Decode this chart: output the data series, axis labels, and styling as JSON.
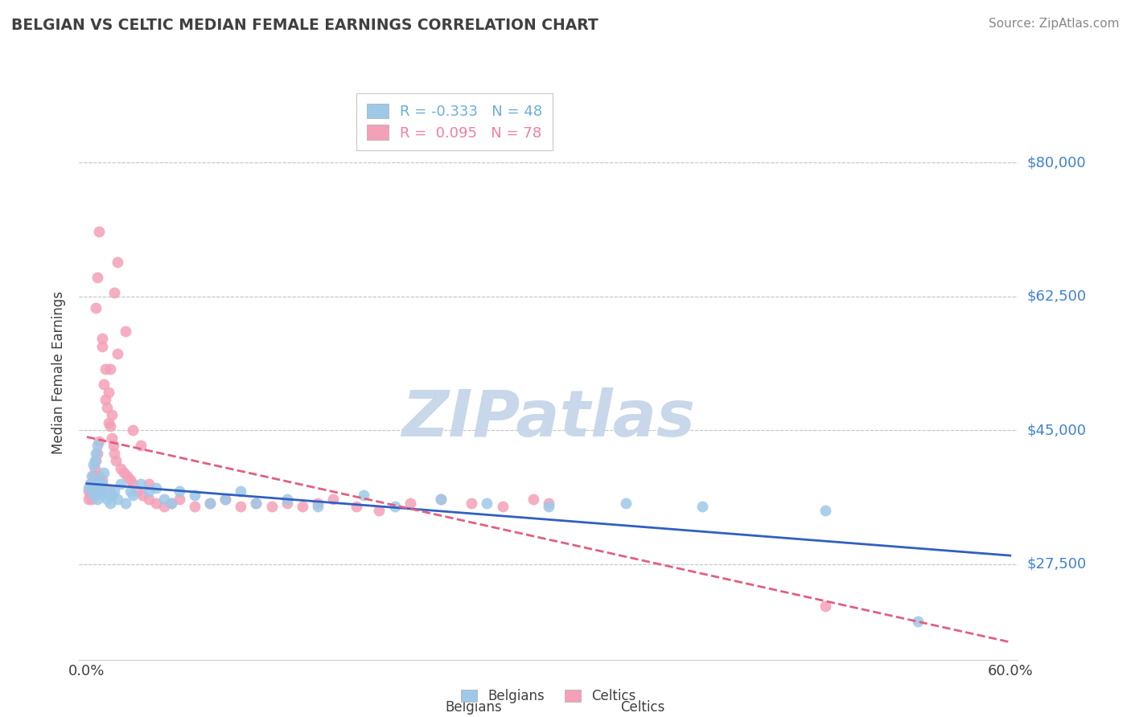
{
  "title": "BELGIAN VS CELTIC MEDIAN FEMALE EARNINGS CORRELATION CHART",
  "source": "Source: ZipAtlas.com",
  "ylabel": "Median Female Earnings",
  "xlim": [
    -0.005,
    0.605
  ],
  "ylim": [
    15000,
    90000
  ],
  "yticks": [
    27500,
    45000,
    62500,
    80000
  ],
  "ytick_labels": [
    "$27,500",
    "$45,000",
    "$62,500",
    "$80,000"
  ],
  "xtick_positions": [
    0.0,
    0.1,
    0.2,
    0.3,
    0.4,
    0.5,
    0.6
  ],
  "xtick_labels": [
    "0.0%",
    "",
    "",
    "",
    "",
    "",
    "60.0%"
  ],
  "legend_entries": [
    {
      "label": "R = -0.333   N = 48",
      "color": "#6baed6"
    },
    {
      "label": "R =  0.095   N = 78",
      "color": "#f080a0"
    }
  ],
  "belgians_color": "#9ec8e8",
  "celtics_color": "#f4a0b8",
  "belgians_line_color": "#3060c0",
  "celtics_line_color": "#e06080",
  "background_color": "#ffffff",
  "grid_color": "#c8c8c8",
  "watermark": "ZIPatlas",
  "watermark_color": "#c8d8ea",
  "title_color": "#404040",
  "ylabel_color": "#404040",
  "ytick_color": "#4080d0",
  "source_color": "#888888",
  "belgians_x": [
    0.001,
    0.002,
    0.003,
    0.004,
    0.004,
    0.005,
    0.005,
    0.006,
    0.006,
    0.007,
    0.007,
    0.008,
    0.009,
    0.01,
    0.01,
    0.011,
    0.012,
    0.013,
    0.015,
    0.016,
    0.018,
    0.02,
    0.022,
    0.025,
    0.028,
    0.03,
    0.035,
    0.04,
    0.045,
    0.05,
    0.055,
    0.06,
    0.07,
    0.08,
    0.09,
    0.1,
    0.11,
    0.13,
    0.15,
    0.18,
    0.2,
    0.23,
    0.26,
    0.3,
    0.35,
    0.4,
    0.48,
    0.54
  ],
  "belgians_y": [
    37500,
    38000,
    39000,
    40500,
    36500,
    41000,
    38000,
    42000,
    37000,
    43000,
    36000,
    38500,
    37000,
    36500,
    38000,
    39500,
    37000,
    36000,
    35500,
    36500,
    37000,
    36000,
    38000,
    35500,
    37000,
    36500,
    38000,
    37000,
    37500,
    36000,
    35500,
    37000,
    36500,
    35500,
    36000,
    37000,
    35500,
    36000,
    35000,
    36500,
    35000,
    36000,
    35500,
    35000,
    35500,
    35000,
    34500,
    20000
  ],
  "celtics_x": [
    0.001,
    0.001,
    0.002,
    0.002,
    0.003,
    0.003,
    0.004,
    0.004,
    0.005,
    0.005,
    0.005,
    0.006,
    0.006,
    0.006,
    0.007,
    0.007,
    0.008,
    0.008,
    0.009,
    0.009,
    0.01,
    0.01,
    0.011,
    0.012,
    0.013,
    0.014,
    0.015,
    0.015,
    0.016,
    0.017,
    0.018,
    0.019,
    0.02,
    0.022,
    0.024,
    0.026,
    0.028,
    0.03,
    0.033,
    0.036,
    0.04,
    0.045,
    0.05,
    0.055,
    0.06,
    0.07,
    0.08,
    0.09,
    0.1,
    0.11,
    0.12,
    0.13,
    0.14,
    0.15,
    0.16,
    0.175,
    0.19,
    0.21,
    0.23,
    0.25,
    0.27,
    0.29,
    0.3,
    0.02,
    0.018,
    0.015,
    0.025,
    0.03,
    0.035,
    0.04,
    0.008,
    0.007,
    0.006,
    0.01,
    0.012,
    0.014,
    0.016,
    0.48
  ],
  "celtics_y": [
    37000,
    36000,
    38000,
    36500,
    37500,
    36000,
    39000,
    37000,
    40000,
    38000,
    36500,
    41000,
    39000,
    37000,
    42000,
    38000,
    43500,
    39000,
    38000,
    37000,
    56000,
    38500,
    51000,
    49000,
    48000,
    46000,
    45500,
    37000,
    44000,
    43000,
    42000,
    41000,
    55000,
    40000,
    39500,
    39000,
    38500,
    38000,
    37000,
    36500,
    36000,
    35500,
    35000,
    35500,
    36000,
    35000,
    35500,
    36000,
    35000,
    35500,
    35000,
    35500,
    35000,
    35500,
    36000,
    35000,
    34500,
    35500,
    36000,
    35500,
    35000,
    36000,
    35500,
    67000,
    63000,
    53000,
    58000,
    45000,
    43000,
    38000,
    71000,
    65000,
    61000,
    57000,
    53000,
    50000,
    47000,
    22000
  ]
}
